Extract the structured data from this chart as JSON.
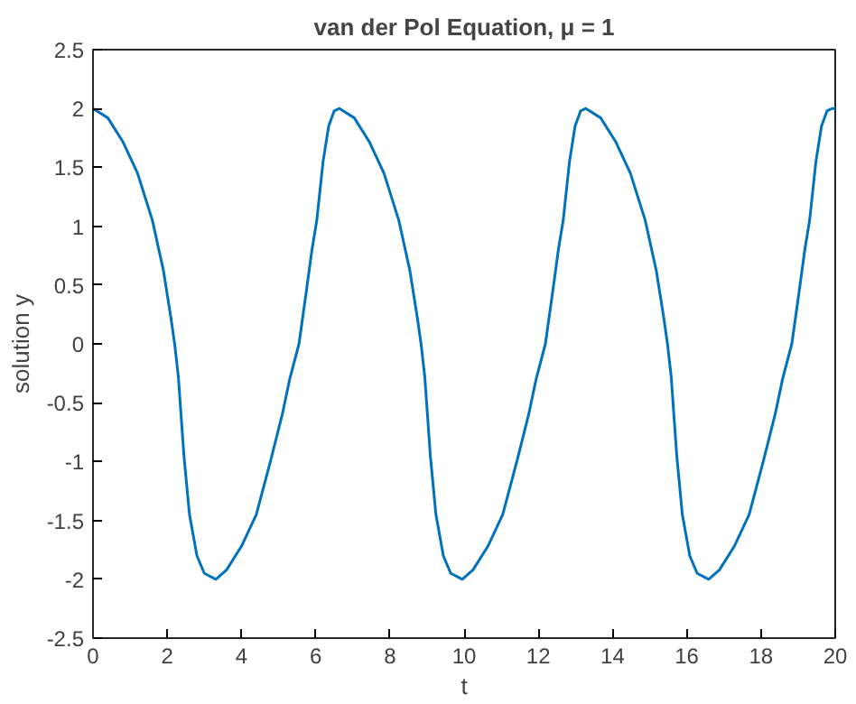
{
  "chart_data": {
    "type": "line",
    "title": "van der Pol Equation, μ = 1",
    "xlabel": "t",
    "ylabel": "solution y",
    "x": [
      0,
      0.4,
      0.8,
      1.2,
      1.6,
      1.9,
      2.1,
      2.2,
      2.3,
      2.45,
      2.6,
      2.8,
      3.0,
      3.31,
      3.6,
      4.0,
      4.4,
      4.78,
      5.1,
      5.3,
      5.55,
      5.75,
      5.9,
      6.03,
      6.2,
      6.35,
      6.5,
      6.64,
      7.04,
      7.44,
      7.84,
      8.24,
      8.54,
      8.74,
      8.84,
      8.94,
      9.09,
      9.24,
      9.44,
      9.64,
      9.95,
      10.24,
      10.64,
      11.04,
      11.42,
      11.74,
      11.94,
      12.19,
      12.39,
      12.54,
      12.67,
      12.84,
      12.99,
      13.14,
      13.28,
      13.68,
      14.08,
      14.48,
      14.88,
      15.18,
      15.38,
      15.48,
      15.58,
      15.73,
      15.88,
      16.08,
      16.28,
      16.59,
      16.88,
      17.28,
      17.68,
      18.06,
      18.38,
      18.58,
      18.83,
      19.03,
      19.18,
      19.31,
      19.48,
      19.63,
      19.78,
      19.92,
      20
    ],
    "series": [
      {
        "color": "#0072bd",
        "values": [
          2.0,
          1.92,
          1.72,
          1.45,
          1.05,
          0.62,
          0.22,
          0.0,
          -0.28,
          -0.95,
          -1.45,
          -1.8,
          -1.95,
          -2.0,
          -1.92,
          -1.72,
          -1.45,
          -1.0,
          -0.6,
          -0.3,
          0.0,
          0.45,
          0.8,
          1.05,
          1.55,
          1.85,
          1.98,
          2.0,
          1.92,
          1.72,
          1.45,
          1.05,
          0.62,
          0.22,
          0.0,
          -0.28,
          -0.95,
          -1.45,
          -1.8,
          -1.95,
          -2.0,
          -1.92,
          -1.72,
          -1.45,
          -1.0,
          -0.6,
          -0.3,
          0.0,
          0.45,
          0.8,
          1.05,
          1.55,
          1.85,
          1.98,
          2.0,
          1.92,
          1.72,
          1.45,
          1.05,
          0.62,
          0.22,
          0.0,
          -0.28,
          -0.95,
          -1.45,
          -1.8,
          -1.95,
          -2.0,
          -1.92,
          -1.72,
          -1.45,
          -1.0,
          -0.6,
          -0.3,
          0.0,
          0.45,
          0.8,
          1.05,
          1.55,
          1.85,
          1.98,
          2.0,
          2.0
        ]
      }
    ],
    "xlim": [
      0,
      20
    ],
    "xticks": [
      0,
      2,
      4,
      6,
      8,
      10,
      12,
      14,
      16,
      18,
      20
    ],
    "ylim": [
      -2.5,
      2.5
    ],
    "yticks": [
      -2.5,
      -2,
      -1.5,
      -1,
      -0.5,
      0,
      0.5,
      1,
      1.5,
      2,
      2.5
    ],
    "line_style": "solid"
  }
}
